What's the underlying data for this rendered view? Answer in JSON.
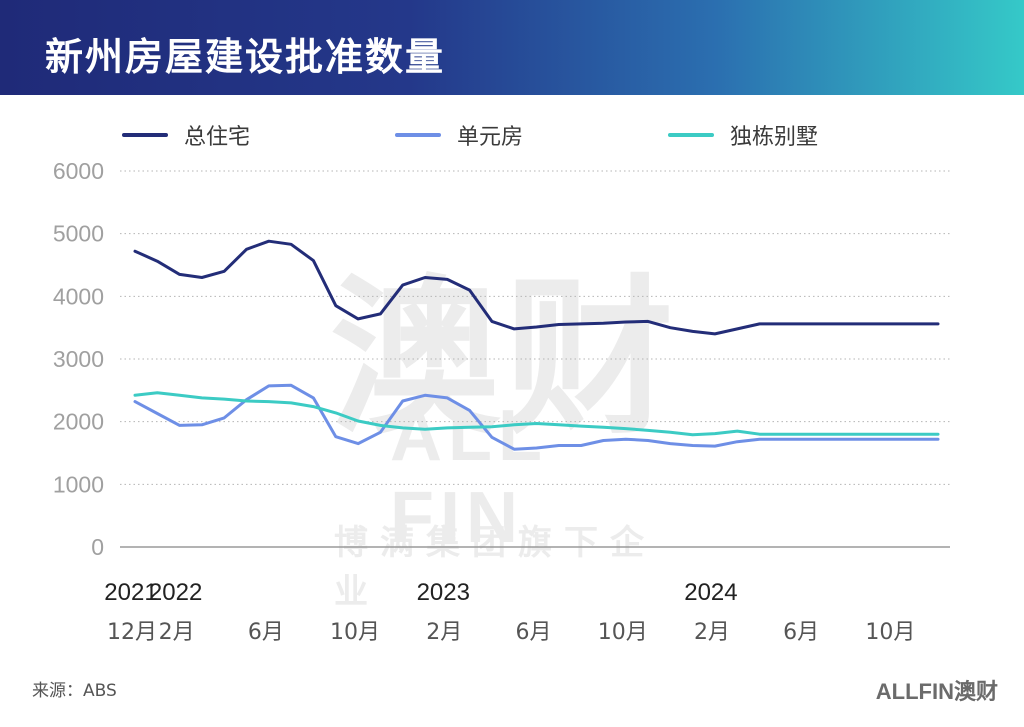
{
  "header": {
    "title": "新州房屋建设批准数量"
  },
  "watermark": {
    "big": "澳财",
    "mid": "ALL FIN",
    "small": "博满集团旗下企业"
  },
  "footer": {
    "source": "来源：ABS",
    "brand": "ALLFIN澳财"
  },
  "colors": {
    "total": "#232d78",
    "units": "#6e8fe6",
    "houses": "#3ccbc4",
    "grid": "#b5b5b5",
    "axis": "#9a9a9a",
    "tick": "#a0a0a0"
  },
  "chart_data": {
    "type": "line",
    "title": "新州房屋建设批准数量",
    "xlabel": "",
    "ylabel": "",
    "ylim": [
      0,
      6000
    ],
    "yticks": [
      0,
      1000,
      2000,
      3000,
      4000,
      5000,
      6000
    ],
    "grid": true,
    "legend_position": "top",
    "x": [
      "2021-12",
      "2022-01",
      "2022-02",
      "2022-03",
      "2022-04",
      "2022-05",
      "2022-06",
      "2022-07",
      "2022-08",
      "2022-09",
      "2022-10",
      "2022-11",
      "2022-12",
      "2023-01",
      "2023-02",
      "2023-03",
      "2023-04",
      "2023-05",
      "2023-06",
      "2023-07",
      "2023-08",
      "2023-09",
      "2023-10",
      "2023-11",
      "2023-12",
      "2024-01",
      "2024-02",
      "2024-03",
      "2024-04",
      "2024-05",
      "2024-06",
      "2024-07",
      "2024-08",
      "2024-09",
      "2024-10",
      "2024-11",
      "2024-12"
    ],
    "month_ticks": [
      {
        "index": 0,
        "label": "12月"
      },
      {
        "index": 2,
        "label": "2月"
      },
      {
        "index": 6,
        "label": "6月"
      },
      {
        "index": 10,
        "label": "10月"
      },
      {
        "index": 14,
        "label": "2月"
      },
      {
        "index": 18,
        "label": "6月"
      },
      {
        "index": 22,
        "label": "10月"
      },
      {
        "index": 26,
        "label": "2月"
      },
      {
        "index": 30,
        "label": "6月"
      },
      {
        "index": 34,
        "label": "10月"
      }
    ],
    "year_ticks": [
      {
        "index": 0,
        "label": "2021"
      },
      {
        "index": 2,
        "label": "2022"
      },
      {
        "index": 14,
        "label": "2023"
      },
      {
        "index": 26,
        "label": "2024"
      }
    ],
    "series": [
      {
        "name": "总住宅",
        "color": "#232d78",
        "values": [
          4720,
          4560,
          4350,
          4300,
          4400,
          4750,
          4880,
          4830,
          4570,
          3850,
          3640,
          3720,
          4180,
          4300,
          4270,
          4100,
          3600,
          3480,
          3510,
          3550,
          3560,
          3570,
          3590,
          3600,
          3500,
          3440,
          3400,
          3480,
          3560,
          3560,
          3560,
          3560,
          3560,
          3560,
          3560,
          3560,
          3560
        ]
      },
      {
        "name": "单元房",
        "color": "#6e8fe6",
        "values": [
          2320,
          2130,
          1940,
          1950,
          2060,
          2350,
          2570,
          2580,
          2380,
          1760,
          1650,
          1830,
          2330,
          2420,
          2380,
          2180,
          1750,
          1560,
          1580,
          1620,
          1620,
          1700,
          1720,
          1700,
          1650,
          1620,
          1610,
          1680,
          1720,
          1720,
          1720,
          1720,
          1720,
          1720,
          1720,
          1720,
          1720
        ]
      },
      {
        "name": "独栋别墅",
        "color": "#3ccbc4",
        "values": [
          2420,
          2460,
          2420,
          2380,
          2360,
          2330,
          2320,
          2300,
          2240,
          2140,
          2010,
          1940,
          1900,
          1880,
          1900,
          1910,
          1920,
          1950,
          1970,
          1950,
          1930,
          1910,
          1890,
          1860,
          1830,
          1790,
          1810,
          1850,
          1800,
          1800,
          1800,
          1800,
          1800,
          1800,
          1800,
          1800,
          1800
        ]
      }
    ]
  }
}
